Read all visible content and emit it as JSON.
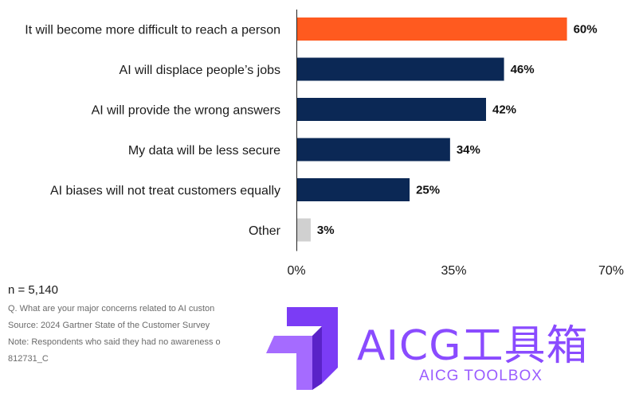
{
  "chart_data": {
    "type": "bar",
    "orientation": "horizontal",
    "categories": [
      "It will become more difficult to reach a person",
      "AI will displace people’s jobs",
      "AI will provide the wrong answers",
      "My data will be less secure",
      "AI biases will not treat customers equally",
      "Other"
    ],
    "values": [
      60,
      46,
      42,
      34,
      25,
      3
    ],
    "value_labels": [
      "60%",
      "46%",
      "42%",
      "34%",
      "25%",
      "3%"
    ],
    "bar_colors": [
      "#ff5a1f",
      "#0b2855",
      "#0b2855",
      "#0b2855",
      "#0b2855",
      "#d0d0d0"
    ],
    "xlim": [
      0,
      70
    ],
    "xticks": [
      0,
      35,
      70
    ],
    "xtick_labels": [
      "0%",
      "35%",
      "70%"
    ],
    "grid": false
  },
  "footer": {
    "n": "n = 5,140",
    "notes": [
      "Q. What are your major concerns related to AI custon",
      "Source: 2024 Gartner State of the Customer Survey",
      "Note: Respondents who said they had no awareness o",
      "812731_C"
    ]
  },
  "watermark": {
    "title": "AICG工具箱",
    "subtitle": "AICG TOOLBOX",
    "color": "#8a4bff"
  }
}
